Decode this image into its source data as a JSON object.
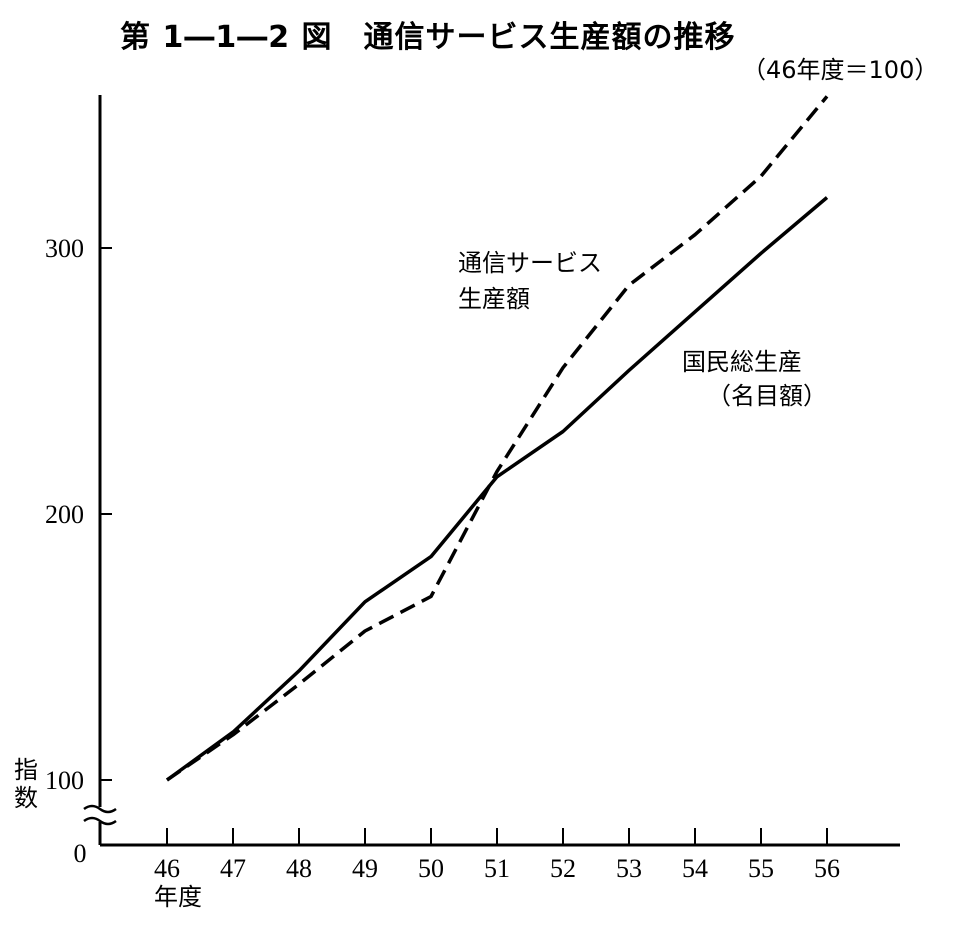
{
  "title": "第 1―1―2 図　通信サービス生産額の推移",
  "subtitle": "（46年度＝100）",
  "chart_data": {
    "type": "line",
    "x": [
      "46",
      "47",
      "48",
      "49",
      "50",
      "51",
      "52",
      "53",
      "54",
      "55",
      "56"
    ],
    "xlabel": "年度",
    "ylabel": "指数",
    "y_ticks": [
      "0",
      "100",
      "200",
      "300"
    ],
    "ylim": [
      100,
      350
    ],
    "axis_break": true,
    "grid": false,
    "series": [
      {
        "name": "国民総生産（名目額）",
        "style": "solid",
        "values": [
          100,
          118,
          141,
          167,
          184,
          214,
          231,
          254,
          276,
          298,
          319
        ]
      },
      {
        "name": "通信サービス生産額",
        "style": "dashed",
        "values": [
          100,
          117,
          136,
          156,
          169,
          216,
          255,
          286,
          305,
          327,
          357
        ]
      }
    ],
    "annotations": {
      "tsushin_line1": "通信サービス",
      "tsushin_line2": "生産額",
      "gnp_line1": "国民総生産",
      "gnp_line2": "（名目額）"
    }
  }
}
